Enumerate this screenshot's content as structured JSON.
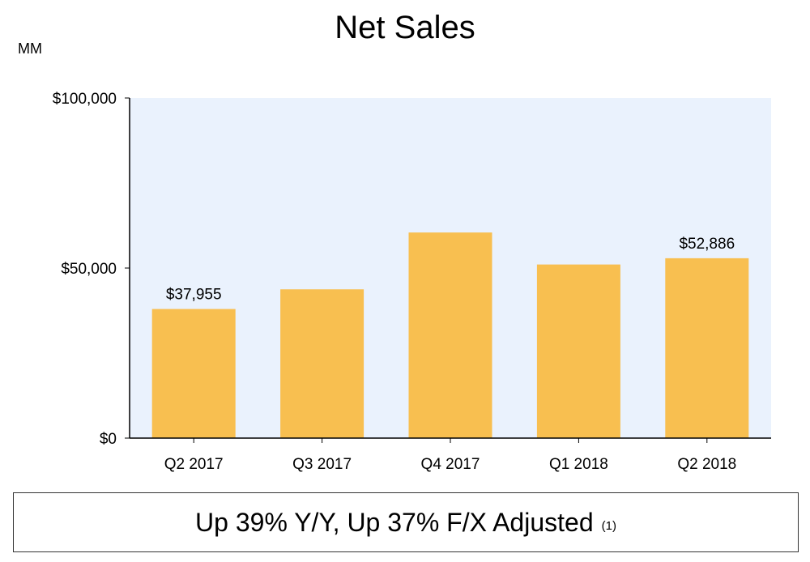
{
  "chart_data": {
    "type": "bar",
    "title": "Net Sales",
    "unit_label": "MM",
    "categories": [
      "Q2 2017",
      "Q3 2017",
      "Q4 2017",
      "Q1 2018",
      "Q2 2018"
    ],
    "values": [
      37955,
      43744,
      60453,
      51042,
      52886
    ],
    "data_labels": [
      "$37,955",
      "",
      "",
      "",
      "$52,886"
    ],
    "ylim": [
      0,
      100000
    ],
    "yticks": [
      0,
      50000,
      100000
    ],
    "ytick_labels": [
      "$0",
      "$50,000",
      "$100,000"
    ],
    "bar_color": "#F8BF50",
    "plot_background": "#EAF2FD",
    "grid": false,
    "legend": "none"
  },
  "footer": {
    "text": "Up 39% Y/Y, Up 37% F/X Adjusted",
    "note": "(1)"
  }
}
